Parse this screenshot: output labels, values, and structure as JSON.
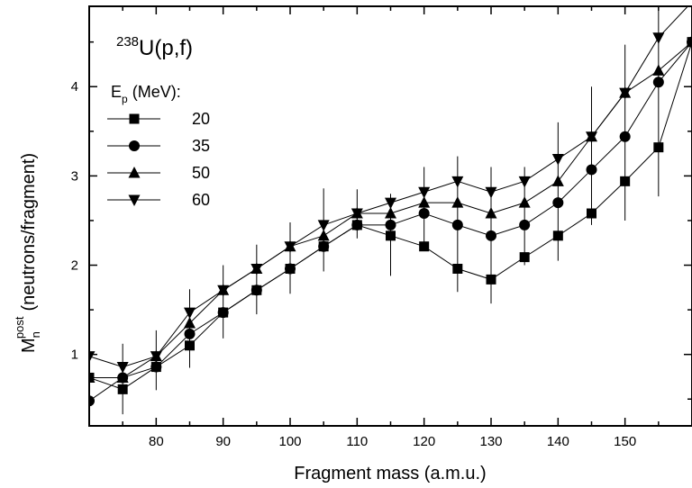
{
  "chart_data": {
    "type": "line",
    "title": {
      "sup": "238",
      "text": "U(p,f)"
    },
    "xlabel": "Fragment mass (a.m.u.)",
    "ylabel": {
      "main": "M",
      "sub": "n",
      "sup": "post",
      "rest": "(neutrons/fragment)"
    },
    "xlim": [
      70,
      160
    ],
    "ylim": [
      0.2,
      4.9
    ],
    "xticks": [
      80,
      90,
      100,
      110,
      120,
      130,
      140,
      150
    ],
    "yticks": [
      1,
      2,
      3,
      4
    ],
    "legend": {
      "title_main": "E",
      "title_sub": "p",
      "title_rest": "(MeV):",
      "placement": "top-left"
    },
    "error_bars": {
      "x": [
        75,
        80,
        85,
        90,
        95,
        100,
        105,
        110,
        115,
        120,
        125,
        130,
        135,
        140,
        145,
        150,
        155
      ],
      "low": [
        0.33,
        0.6,
        0.85,
        1.18,
        1.45,
        1.68,
        1.93,
        2.3,
        1.88,
        2.22,
        1.7,
        1.57,
        2.0,
        2.05,
        2.45,
        2.5,
        2.77
      ],
      "high": [
        1.12,
        1.27,
        1.73,
        2.0,
        2.23,
        2.48,
        2.86,
        2.85,
        2.8,
        3.1,
        3.22,
        3.1,
        3.1,
        3.6,
        4.0,
        4.47,
        4.9
      ]
    },
    "series": [
      {
        "name": "20",
        "marker": "square",
        "x": [
          70,
          75,
          80,
          85,
          90,
          95,
          100,
          105,
          110,
          115,
          120,
          125,
          130,
          135,
          140,
          145,
          150,
          155,
          160
        ],
        "y": [
          0.74,
          0.61,
          0.86,
          1.1,
          1.47,
          1.72,
          1.96,
          2.21,
          2.45,
          2.33,
          2.21,
          1.96,
          1.84,
          2.09,
          2.33,
          2.58,
          2.94,
          3.32,
          4.5
        ]
      },
      {
        "name": "35",
        "marker": "circle",
        "x": [
          70,
          75,
          80,
          85,
          90,
          95,
          100,
          105,
          110,
          115,
          120,
          125,
          130,
          135,
          140,
          145,
          150,
          155,
          160
        ],
        "y": [
          0.48,
          0.74,
          0.86,
          1.23,
          1.47,
          1.72,
          1.96,
          2.21,
          2.45,
          2.45,
          2.58,
          2.45,
          2.33,
          2.45,
          2.7,
          3.07,
          3.44,
          4.05,
          4.5
        ]
      },
      {
        "name": "50",
        "marker": "triangle-up",
        "x": [
          70,
          75,
          80,
          85,
          90,
          95,
          100,
          105,
          110,
          115,
          120,
          125,
          130,
          135,
          140,
          145,
          150,
          155,
          160
        ],
        "y": [
          0.74,
          0.74,
          0.98,
          1.35,
          1.72,
          1.96,
          2.21,
          2.33,
          2.58,
          2.58,
          2.7,
          2.7,
          2.58,
          2.7,
          2.94,
          3.44,
          3.93,
          4.18,
          4.5
        ]
      },
      {
        "name": "60",
        "marker": "triangle-down",
        "x": [
          70,
          75,
          80,
          85,
          90,
          95,
          100,
          105,
          110,
          115,
          120,
          125,
          130,
          135,
          140,
          145,
          150,
          155,
          160
        ],
        "y": [
          0.98,
          0.86,
          0.98,
          1.47,
          1.72,
          1.96,
          2.21,
          2.45,
          2.58,
          2.7,
          2.82,
          2.94,
          2.82,
          2.94,
          3.19,
          3.44,
          3.93,
          4.55,
          4.95
        ]
      }
    ]
  }
}
